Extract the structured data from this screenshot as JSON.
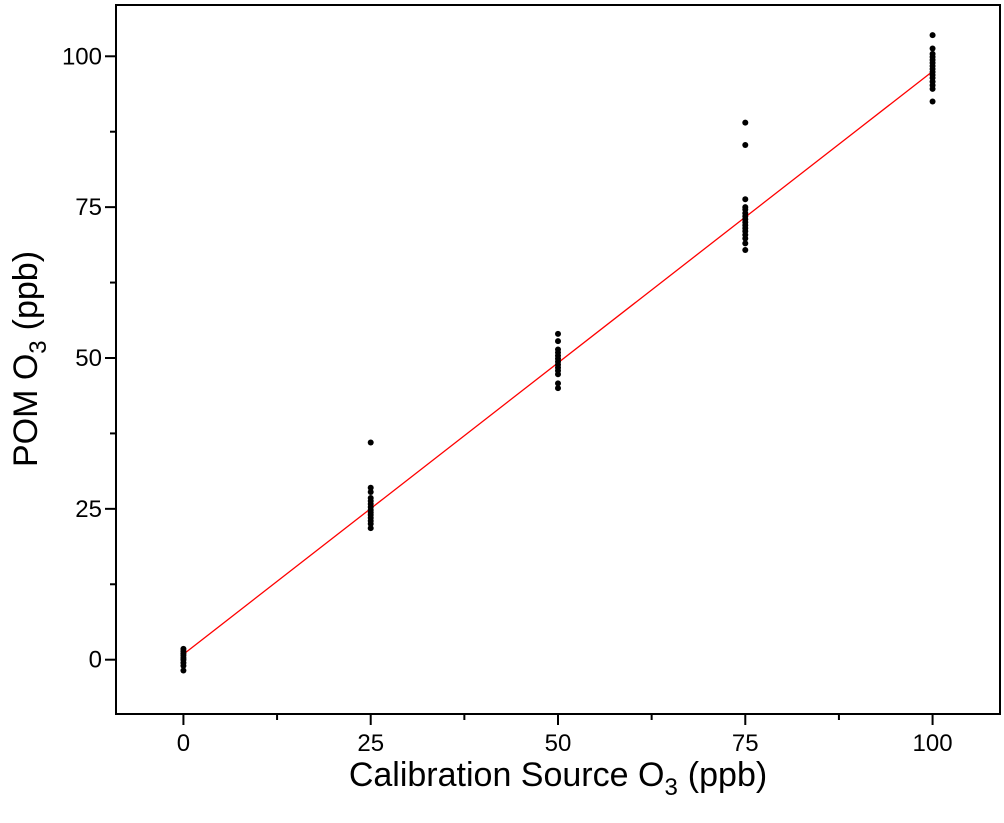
{
  "chart_data": {
    "type": "scatter",
    "title": "",
    "xlabel": {
      "main": "Calibration Source O",
      "sub": "3",
      "unit": "(ppb)"
    },
    "ylabel": {
      "main": "POM O",
      "sub": "3",
      "unit": "(ppb)"
    },
    "xlim": [
      -9,
      109
    ],
    "ylim": [
      -9,
      108.5
    ],
    "xticks": [
      0,
      25,
      50,
      75,
      100
    ],
    "xtick_labels": [
      "0",
      "25",
      "50",
      "75",
      "100"
    ],
    "yticks": [
      0,
      25,
      50,
      75,
      100
    ],
    "ytick_labels": [
      "0",
      "25",
      "50",
      "75",
      "100"
    ],
    "minor_ticks": true,
    "grid": false,
    "legend": "none",
    "series": [
      {
        "type": "scatter",
        "color": "#000000",
        "points": [
          [
            0,
            -1.8
          ],
          [
            0,
            -1.0
          ],
          [
            0,
            -0.5
          ],
          [
            0,
            0.0
          ],
          [
            0,
            0.3
          ],
          [
            0,
            0.7
          ],
          [
            0,
            1.0
          ],
          [
            0,
            1.4
          ],
          [
            0,
            1.8
          ],
          [
            25,
            21.8
          ],
          [
            25,
            22.5
          ],
          [
            25,
            23.0
          ],
          [
            25,
            23.5
          ],
          [
            25,
            24.0
          ],
          [
            25,
            24.4
          ],
          [
            25,
            24.8
          ],
          [
            25,
            25.3
          ],
          [
            25,
            25.8
          ],
          [
            25,
            26.3
          ],
          [
            25,
            26.8
          ],
          [
            25,
            27.8
          ],
          [
            25,
            28.5
          ],
          [
            25,
            36.0
          ],
          [
            50,
            45.0
          ],
          [
            50,
            45.8
          ],
          [
            50,
            47.3
          ],
          [
            50,
            47.9
          ],
          [
            50,
            48.4
          ],
          [
            50,
            48.9
          ],
          [
            50,
            49.4
          ],
          [
            50,
            49.9
          ],
          [
            50,
            50.4
          ],
          [
            50,
            50.9
          ],
          [
            50,
            51.4
          ],
          [
            50,
            52.8
          ],
          [
            50,
            54.0
          ],
          [
            75,
            67.9
          ],
          [
            75,
            69.0
          ],
          [
            75,
            69.8
          ],
          [
            75,
            70.4
          ],
          [
            75,
            71.0
          ],
          [
            75,
            71.5
          ],
          [
            75,
            72.0
          ],
          [
            75,
            72.5
          ],
          [
            75,
            73.0
          ],
          [
            75,
            73.5
          ],
          [
            75,
            74.0
          ],
          [
            75,
            74.6
          ],
          [
            75,
            75.0
          ],
          [
            75,
            76.3
          ],
          [
            75,
            85.3
          ],
          [
            75,
            89.0
          ],
          [
            100,
            92.5
          ],
          [
            100,
            94.6
          ],
          [
            100,
            95.2
          ],
          [
            100,
            95.8
          ],
          [
            100,
            96.4
          ],
          [
            100,
            96.9
          ],
          [
            100,
            97.4
          ],
          [
            100,
            97.9
          ],
          [
            100,
            98.4
          ],
          [
            100,
            98.9
          ],
          [
            100,
            99.4
          ],
          [
            100,
            99.9
          ],
          [
            100,
            100.4
          ],
          [
            100,
            101.3
          ],
          [
            100,
            103.5
          ]
        ]
      },
      {
        "type": "line",
        "color": "#ff0000",
        "x": [
          0,
          100
        ],
        "y": [
          0.9,
          97.5
        ]
      }
    ]
  }
}
